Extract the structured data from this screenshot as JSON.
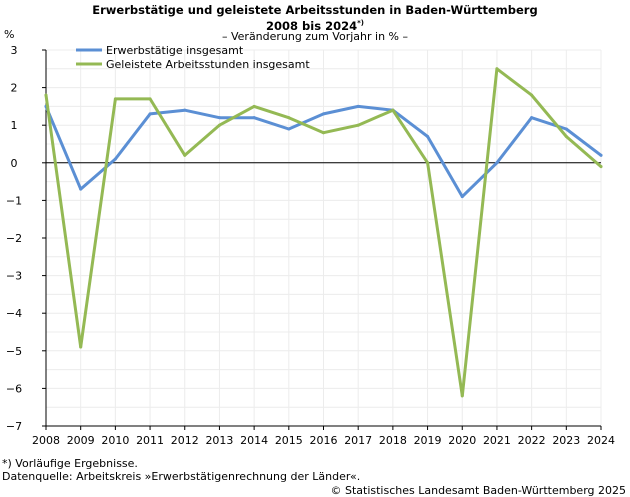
{
  "header": {
    "title_line1": "Erwerbstätige und geleistete Arbeitsstunden in Baden-Württemberg",
    "title_line2": "2008 bis 2024",
    "title_marker": "*)",
    "subtitle": "– Veränderung zum Vorjahr in % –"
  },
  "footer": {
    "footnote": "*) Vorläufige Ergebnisse.",
    "source": "Datenquelle: Arbeitskreis »Erwerbstätigenrechnung der Länder«.",
    "copyright": "© Statistisches Landesamt Baden-Württemberg 2025"
  },
  "chart_data": {
    "type": "line",
    "title": "Erwerbstätige und geleistete Arbeitsstunden in Baden-Württemberg 2008 bis 2024*)",
    "subtitle": "– Veränderung zum Vorjahr in % –",
    "ylabel": "%",
    "xlabel": "",
    "categories": [
      "2008",
      "2009",
      "2010",
      "2011",
      "2012",
      "2013",
      "2014",
      "2015",
      "2016",
      "2017",
      "2018",
      "2019",
      "2020",
      "2021",
      "2022",
      "2023",
      "2024"
    ],
    "ylim": [
      -7,
      3
    ],
    "yticks": [
      "3",
      "2",
      "1",
      "0",
      "−1",
      "−2",
      "−3",
      "−4",
      "−5",
      "−6",
      "−7"
    ],
    "grid": true,
    "legend_position": "top-left",
    "series": [
      {
        "name": "Erwerbstätige insgesamt",
        "color": "#5b8fd4",
        "values": [
          1.5,
          -0.7,
          0.1,
          1.3,
          1.4,
          1.2,
          1.2,
          0.9,
          1.3,
          1.5,
          1.4,
          0.7,
          -0.9,
          0.0,
          1.2,
          0.9,
          0.2
        ]
      },
      {
        "name": "Geleistete Arbeitsstunden insgesamt",
        "color": "#94b954",
        "values": [
          1.8,
          -4.9,
          1.7,
          1.7,
          0.2,
          1.0,
          1.5,
          1.2,
          0.8,
          1.0,
          1.4,
          0.0,
          -6.2,
          2.5,
          1.8,
          0.7,
          -0.1
        ]
      }
    ]
  }
}
